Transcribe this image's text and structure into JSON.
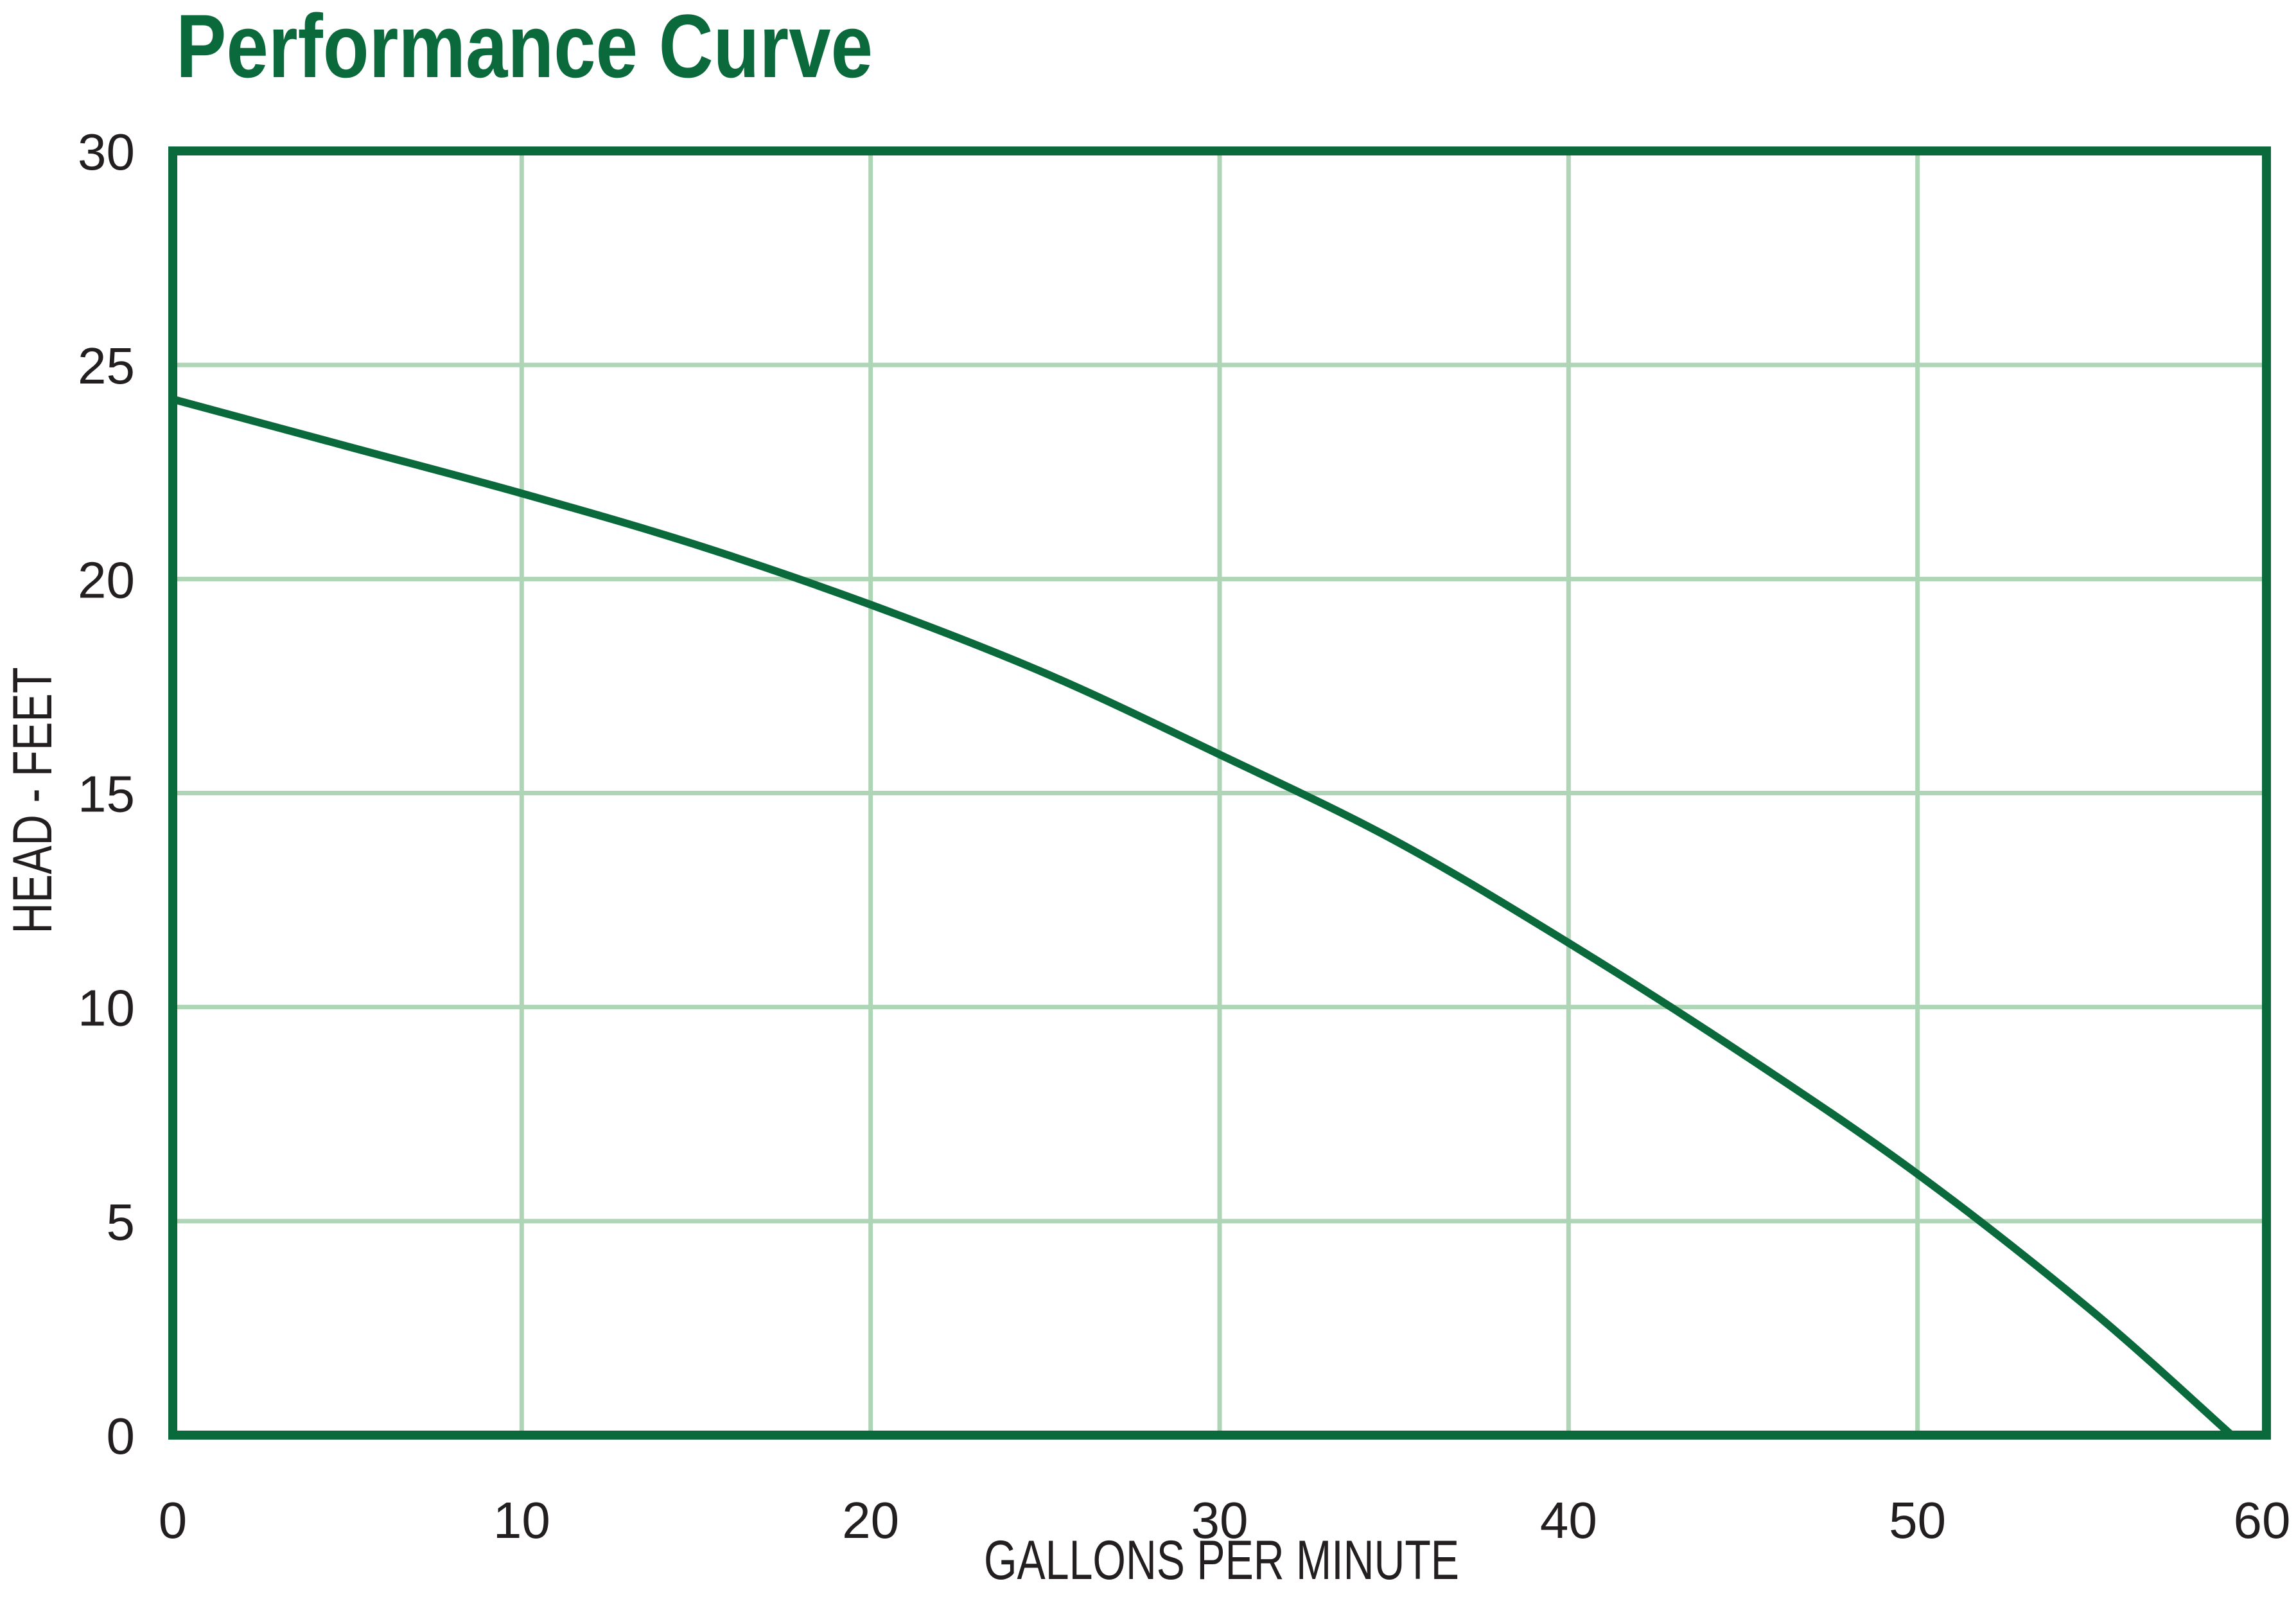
{
  "colors": {
    "accent": "#0b6a3c",
    "grid": "#aed5b5",
    "text": "#231f20",
    "background": "#ffffff"
  },
  "chart_data": {
    "type": "line",
    "title": "Performance Curve",
    "xlabel": "GALLONS PER MINUTE",
    "ylabel": "HEAD - FEET",
    "xlim": [
      0,
      60
    ],
    "ylim": [
      0,
      30
    ],
    "xticks": [
      0,
      10,
      20,
      30,
      40,
      50,
      60
    ],
    "yticks": [
      0,
      5,
      10,
      15,
      20,
      25,
      30
    ],
    "grid": true,
    "series": [
      {
        "x": [
          0,
          5,
          10,
          15,
          20,
          25,
          30,
          35,
          40,
          45,
          50,
          55,
          59
        ],
        "y": [
          24.2,
          23.1,
          22.0,
          20.8,
          19.4,
          17.8,
          15.9,
          13.9,
          11.5,
          8.9,
          6.1,
          2.9,
          0
        ]
      }
    ]
  }
}
